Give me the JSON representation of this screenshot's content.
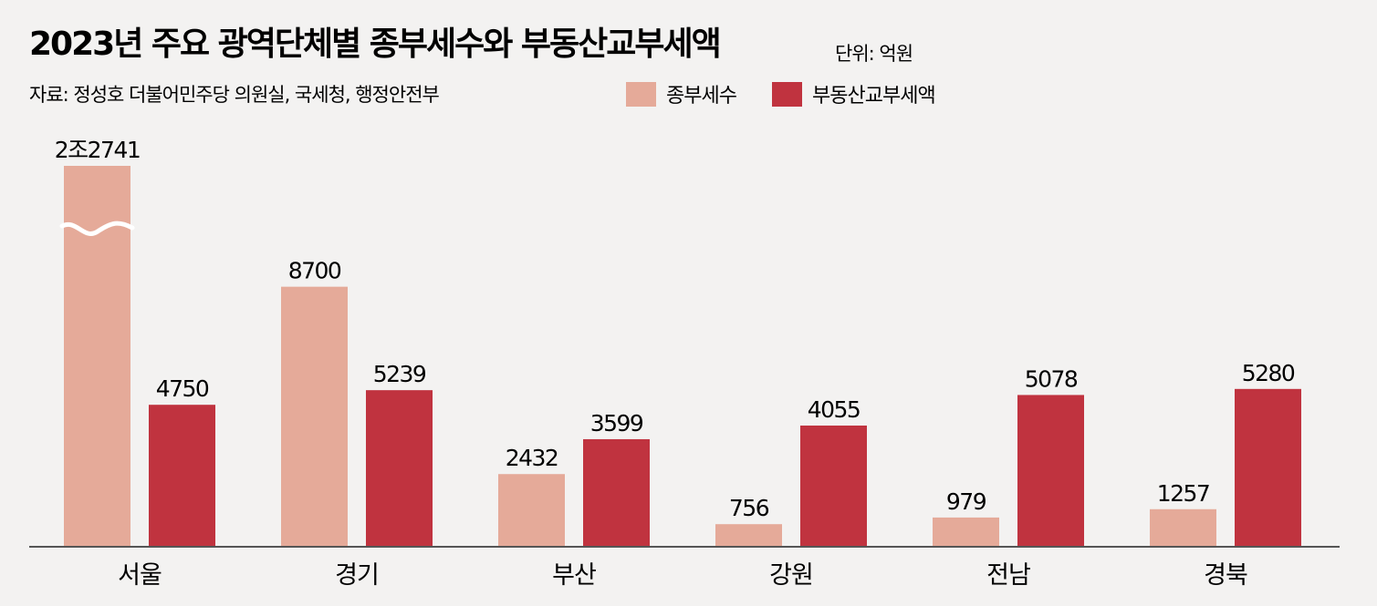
{
  "chart_data": {
    "type": "bar",
    "title": "2023년 주요 광역단체별 종부세수와 부동산교부세액",
    "unit": "단위: 억원",
    "source": "자료: 정성호 더불어민주당 의원실, 국세청, 행정안전부",
    "categories": [
      "서울",
      "경기",
      "부산",
      "강원",
      "전남",
      "경북"
    ],
    "series": [
      {
        "name": "종부세수",
        "color": "#e5aa99",
        "values": [
          22741,
          8700,
          2432,
          756,
          979,
          1257
        ],
        "labels": [
          "2조2741",
          "8700",
          "2432",
          "756",
          "979",
          "1257"
        ]
      },
      {
        "name": "부동산교부세액",
        "color": "#c0333f",
        "values": [
          4750,
          5239,
          3599,
          4055,
          5078,
          5280
        ],
        "labels": [
          "4750",
          "5239",
          "3599",
          "4055",
          "5078",
          "5280"
        ]
      }
    ],
    "axis_break": {
      "category": "서울",
      "series": "종부세수"
    },
    "grid": false,
    "legend_position": "top"
  }
}
